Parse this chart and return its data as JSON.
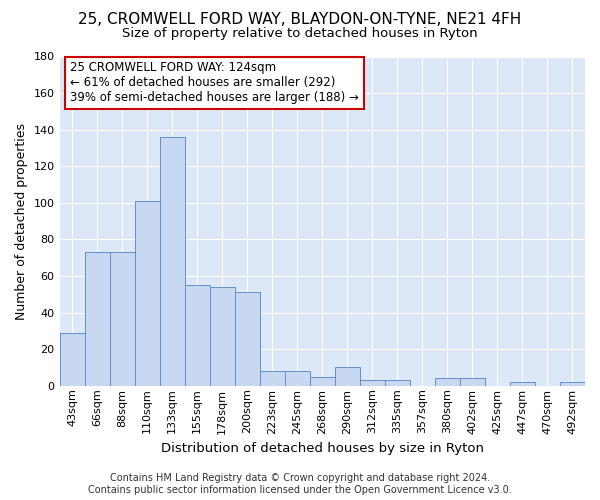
{
  "title": "25, CROMWELL FORD WAY, BLAYDON-ON-TYNE, NE21 4FH",
  "subtitle": "Size of property relative to detached houses in Ryton",
  "xlabel": "Distribution of detached houses by size in Ryton",
  "ylabel": "Number of detached properties",
  "bar_color": "#c8d8f0",
  "bar_edge_color": "#6090cc",
  "bg_color": "#dce8f8",
  "categories": [
    "43sqm",
    "66sqm",
    "88sqm",
    "110sqm",
    "133sqm",
    "155sqm",
    "178sqm",
    "200sqm",
    "223sqm",
    "245sqm",
    "268sqm",
    "290sqm",
    "312sqm",
    "335sqm",
    "357sqm",
    "380sqm",
    "402sqm",
    "425sqm",
    "447sqm",
    "470sqm",
    "492sqm"
  ],
  "values": [
    29,
    73,
    73,
    101,
    136,
    55,
    54,
    51,
    8,
    8,
    5,
    10,
    3,
    3,
    0,
    4,
    4,
    0,
    2,
    0,
    2
  ],
  "ylim": [
    0,
    180
  ],
  "yticks": [
    0,
    20,
    40,
    60,
    80,
    100,
    120,
    140,
    160,
    180
  ],
  "annotation_text": "25 CROMWELL FORD WAY: 124sqm\n← 61% of detached houses are smaller (292)\n39% of semi-detached houses are larger (188) →",
  "footnote": "Contains HM Land Registry data © Crown copyright and database right 2024.\nContains public sector information licensed under the Open Government Licence v3.0.",
  "annotation_box_color": "#ffffff",
  "annotation_box_edge": "#cc0000",
  "title_fontsize": 11,
  "subtitle_fontsize": 9.5,
  "ylabel_fontsize": 9,
  "xlabel_fontsize": 9.5,
  "tick_fontsize": 8,
  "annotation_fontsize": 8.5,
  "footnote_fontsize": 7
}
